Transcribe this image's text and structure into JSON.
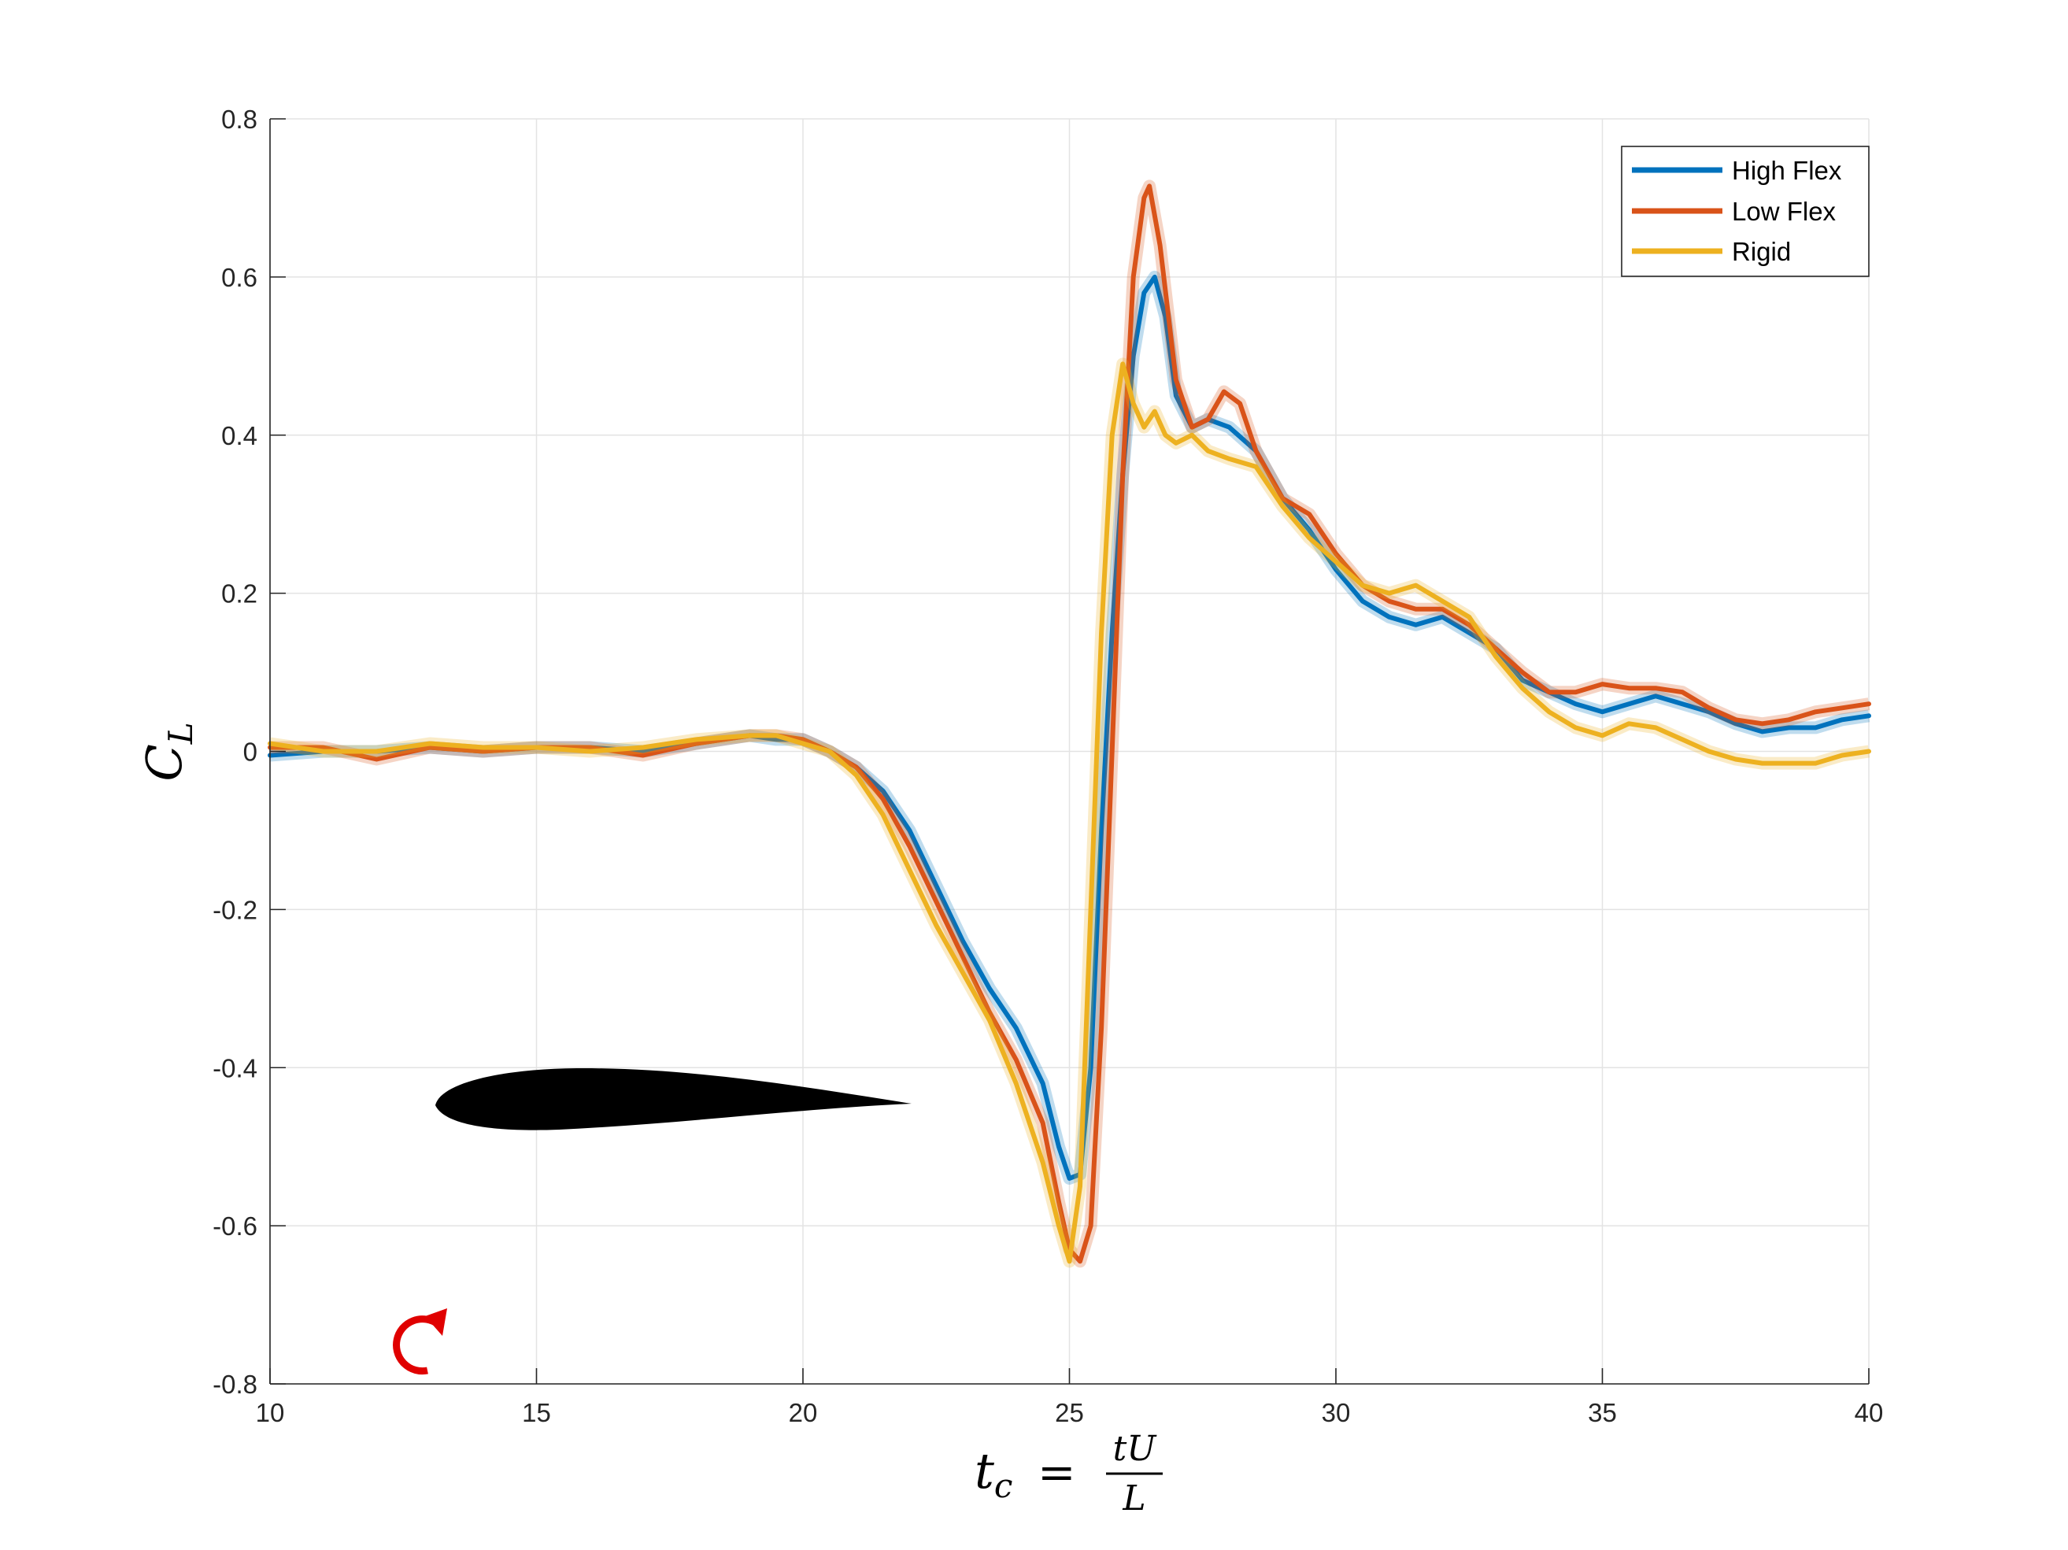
{
  "chart_data": {
    "type": "line",
    "xlabel": {
      "lhs_var": "t",
      "lhs_sub": "c",
      "eq": "=",
      "num": "tU",
      "den": "L"
    },
    "ylabel": {
      "var": "C",
      "sub": "L"
    },
    "xlim": [
      10,
      40
    ],
    "ylim": [
      -0.8,
      0.8
    ],
    "xticks": [
      10,
      15,
      20,
      25,
      30,
      35,
      40
    ],
    "yticks": [
      -0.8,
      -0.6,
      -0.4,
      -0.2,
      0,
      0.2,
      0.4,
      0.6,
      0.8
    ],
    "ytick_labels": [
      "-0.8",
      "-0.6",
      "-0.4",
      "-0.2",
      "0",
      "0.2",
      "0.4",
      "0.6",
      "0.8"
    ],
    "grid": true,
    "legend_position": "top-right",
    "series": [
      {
        "name": "High Flex",
        "color": "#0072BD",
        "x": [
          10,
          11,
          12,
          13,
          14,
          15,
          16,
          17,
          18,
          19,
          19.5,
          20,
          20.5,
          21,
          21.5,
          22,
          22.5,
          23,
          23.5,
          24,
          24.5,
          24.8,
          25,
          25.2,
          25.4,
          25.6,
          25.8,
          26,
          26.2,
          26.4,
          26.6,
          26.8,
          27,
          27.3,
          27.6,
          28,
          28.5,
          29,
          29.5,
          30,
          30.5,
          31,
          31.5,
          32,
          32.5,
          33,
          33.5,
          34,
          34.5,
          35,
          35.5,
          36,
          36.5,
          37,
          37.5,
          38,
          38.5,
          39,
          39.5,
          40
        ],
        "y": [
          -0.005,
          0.0,
          0.0,
          0.005,
          0.0,
          0.005,
          0.005,
          0.0,
          0.01,
          0.02,
          0.015,
          0.015,
          0.0,
          -0.02,
          -0.05,
          -0.1,
          -0.17,
          -0.24,
          -0.3,
          -0.35,
          -0.42,
          -0.5,
          -0.54,
          -0.535,
          -0.4,
          -0.1,
          0.15,
          0.35,
          0.5,
          0.58,
          0.6,
          0.55,
          0.45,
          0.41,
          0.42,
          0.41,
          0.38,
          0.32,
          0.28,
          0.23,
          0.19,
          0.17,
          0.16,
          0.17,
          0.15,
          0.13,
          0.09,
          0.075,
          0.06,
          0.05,
          0.06,
          0.07,
          0.06,
          0.05,
          0.035,
          0.025,
          0.03,
          0.03,
          0.04,
          0.045
        ]
      },
      {
        "name": "Low Flex",
        "color": "#D95319",
        "x": [
          10,
          11,
          12,
          13,
          14,
          15,
          16,
          17,
          18,
          19,
          19.5,
          20,
          20.5,
          21,
          21.5,
          22,
          22.5,
          23,
          23.5,
          24,
          24.5,
          24.8,
          25,
          25.2,
          25.4,
          25.6,
          25.8,
          26,
          26.2,
          26.4,
          26.5,
          26.7,
          27,
          27.3,
          27.6,
          27.9,
          28.2,
          28.5,
          29,
          29.5,
          30,
          30.5,
          31,
          31.5,
          32,
          32.5,
          33,
          33.5,
          34,
          34.5,
          35,
          35.5,
          36,
          36.5,
          37,
          37.5,
          38,
          38.5,
          39,
          39.5,
          40
        ],
        "y": [
          0.005,
          0.005,
          -0.01,
          0.005,
          0.0,
          0.005,
          0.005,
          -0.005,
          0.01,
          0.02,
          0.02,
          0.015,
          0.0,
          -0.02,
          -0.06,
          -0.12,
          -0.19,
          -0.26,
          -0.33,
          -0.39,
          -0.47,
          -0.57,
          -0.63,
          -0.645,
          -0.6,
          -0.35,
          0.0,
          0.35,
          0.6,
          0.7,
          0.715,
          0.64,
          0.47,
          0.41,
          0.42,
          0.455,
          0.44,
          0.38,
          0.32,
          0.3,
          0.25,
          0.21,
          0.19,
          0.18,
          0.18,
          0.16,
          0.13,
          0.1,
          0.075,
          0.075,
          0.085,
          0.08,
          0.08,
          0.075,
          0.055,
          0.04,
          0.035,
          0.04,
          0.05,
          0.055,
          0.06
        ]
      },
      {
        "name": "Rigid",
        "color": "#EDB120",
        "x": [
          10,
          11,
          12,
          13,
          14,
          15,
          16,
          17,
          18,
          19,
          19.5,
          20,
          20.5,
          21,
          21.5,
          22,
          22.5,
          23,
          23.5,
          24,
          24.5,
          24.8,
          25,
          25.2,
          25.4,
          25.6,
          25.8,
          26,
          26.2,
          26.4,
          26.6,
          26.8,
          27,
          27.3,
          27.6,
          28,
          28.5,
          29,
          29.5,
          30,
          30.5,
          31,
          31.5,
          32,
          32.5,
          33,
          33.5,
          34,
          34.5,
          35,
          35.5,
          36,
          36.5,
          37,
          37.5,
          38,
          38.5,
          39,
          39.5,
          40
        ],
        "y": [
          0.01,
          0.0,
          0.0,
          0.01,
          0.005,
          0.005,
          0.0,
          0.005,
          0.015,
          0.02,
          0.02,
          0.01,
          0.0,
          -0.03,
          -0.08,
          -0.15,
          -0.22,
          -0.28,
          -0.34,
          -0.42,
          -0.52,
          -0.6,
          -0.645,
          -0.55,
          -0.2,
          0.15,
          0.4,
          0.49,
          0.44,
          0.41,
          0.43,
          0.4,
          0.39,
          0.4,
          0.38,
          0.37,
          0.36,
          0.31,
          0.27,
          0.24,
          0.21,
          0.2,
          0.21,
          0.19,
          0.17,
          0.12,
          0.08,
          0.05,
          0.03,
          0.02,
          0.035,
          0.03,
          0.015,
          0.0,
          -0.01,
          -0.015,
          -0.015,
          -0.015,
          -0.005,
          0.0
        ]
      }
    ]
  }
}
